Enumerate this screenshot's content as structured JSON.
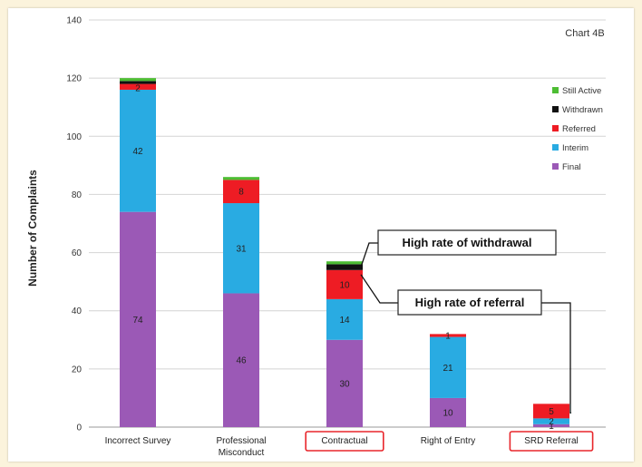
{
  "chart_data": {
    "type": "bar",
    "stacked": true,
    "chart_tag": "Chart 4B",
    "ylabel": "Number of Complaints",
    "ylim": [
      0,
      140
    ],
    "yticks": [
      0,
      20,
      40,
      60,
      80,
      100,
      120,
      140
    ],
    "grid": true,
    "legend_position": "right",
    "categories": [
      "Incorrect Survey",
      "Professional Misconduct",
      "Contractual",
      "Right of Entry",
      "SRD Referral"
    ],
    "highlighted_categories": [
      "Contractual",
      "SRD Referral"
    ],
    "series": [
      {
        "name": "Final",
        "color": "#9b59b6",
        "values": [
          74,
          46,
          30,
          10,
          1
        ],
        "labels": [
          "74",
          "46",
          "30",
          "10",
          "1"
        ]
      },
      {
        "name": "Interim",
        "color": "#29abe2",
        "values": [
          42,
          31,
          14,
          21,
          2
        ],
        "labels": [
          "42",
          "31",
          "14",
          "21",
          "2"
        ]
      },
      {
        "name": "Referred",
        "color": "#ee1c24",
        "values": [
          2,
          8,
          10,
          1,
          5
        ],
        "labels": [
          "",
          "8",
          "10",
          "1",
          "5"
        ]
      },
      {
        "name": "Withdrawn",
        "color": "#111111",
        "values": [
          1,
          0,
          2,
          0,
          0
        ],
        "labels": [
          "",
          "",
          "",
          "",
          ""
        ]
      },
      {
        "name": "Still Active",
        "color": "#4dbd33",
        "values": [
          1,
          1,
          1,
          0,
          0
        ],
        "labels": [
          "",
          "",
          "",
          "",
          ""
        ]
      }
    ],
    "top_segment_labels": [
      "2",
      "",
      "",
      "",
      ""
    ],
    "annotations": [
      {
        "text": "High rate of withdrawal",
        "category": "Contractual",
        "series": "Withdrawn"
      },
      {
        "text": "High rate of referral",
        "categories": [
          "Contractual",
          "SRD Referral"
        ],
        "series": "Referred"
      }
    ]
  }
}
